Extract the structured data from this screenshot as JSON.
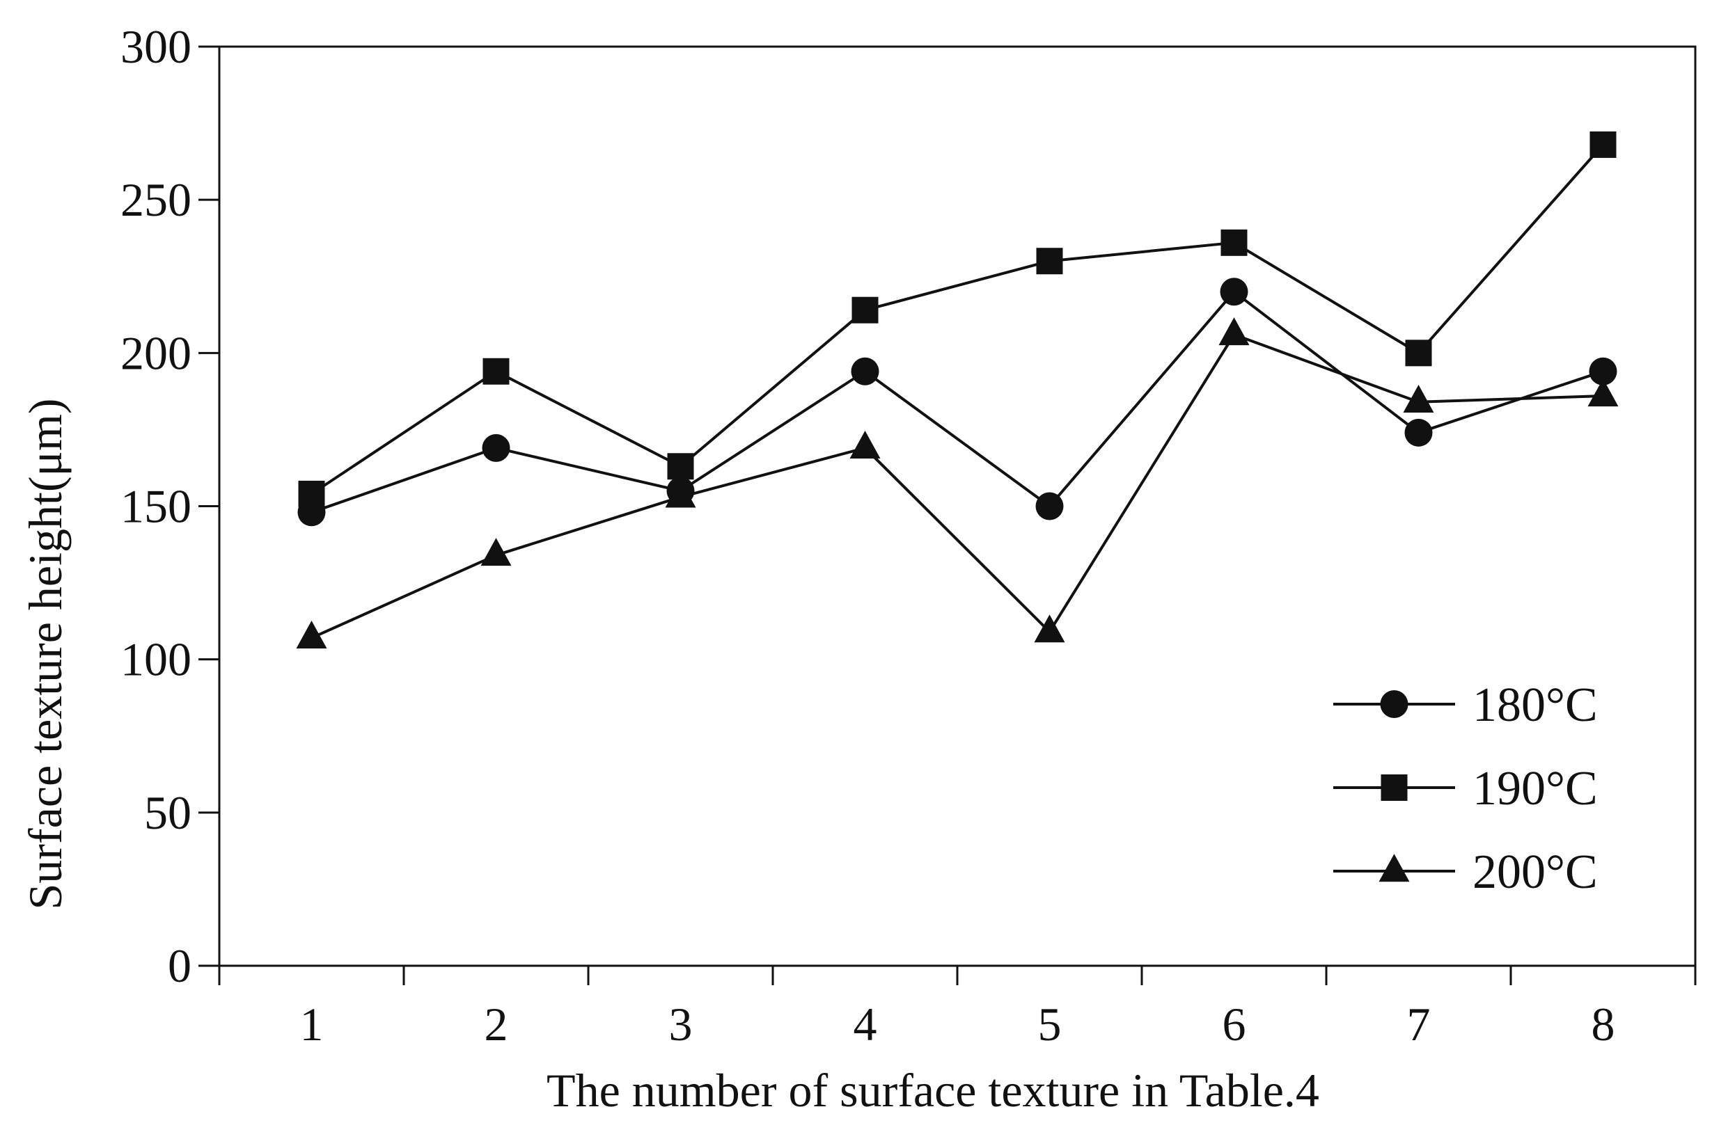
{
  "chart_data": {
    "type": "line",
    "title": "",
    "xlabel": "The number of surface texture in Table.4",
    "ylabel": "Surface texture height(μm)",
    "categories": [
      "1",
      "2",
      "3",
      "4",
      "5",
      "6",
      "7",
      "8"
    ],
    "x": [
      1,
      2,
      3,
      4,
      5,
      6,
      7,
      8
    ],
    "xlim": [
      0.5,
      8.5
    ],
    "ylim": [
      0,
      300
    ],
    "yticks": [
      0,
      50,
      100,
      150,
      200,
      250,
      300
    ],
    "yticks_labels": [
      "0",
      "50",
      "100",
      "150",
      "200",
      "250",
      "300"
    ],
    "grid": false,
    "legend_position": "bottom-right",
    "series": [
      {
        "name": "180°C",
        "marker": "circle",
        "values": [
          148,
          169,
          155,
          194,
          150,
          220,
          174,
          194
        ]
      },
      {
        "name": "190°C",
        "marker": "square",
        "values": [
          154,
          194,
          163,
          214,
          230,
          236,
          200,
          268
        ]
      },
      {
        "name": "200°C",
        "marker": "triangle",
        "values": [
          107,
          134,
          153,
          169,
          109,
          206,
          184,
          186
        ]
      }
    ],
    "colors": {
      "line": "#111111",
      "marker": "#111111",
      "axis": "#111111"
    }
  }
}
